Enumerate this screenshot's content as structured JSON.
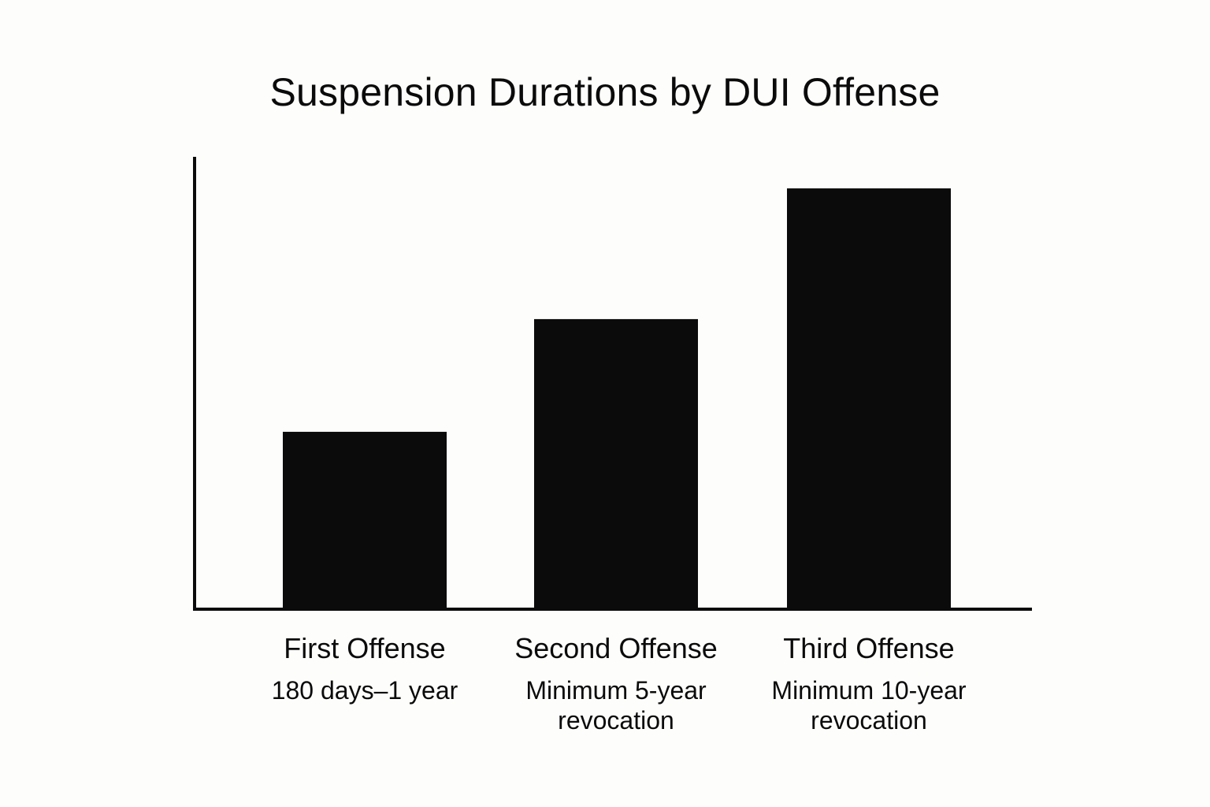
{
  "chart_data": {
    "type": "bar",
    "title": "Suspension Durations by DUI Offense",
    "xlabel": "",
    "ylabel": "",
    "categories": [
      "First Offense",
      "Second Offense",
      "Third Offense"
    ],
    "category_details": [
      [
        "180 days–1 year"
      ],
      [
        "Minimum 5-year",
        "revocation"
      ],
      [
        "Minimum 10-year",
        "revocation"
      ]
    ],
    "values": [
      39,
      64,
      93
    ],
    "ylim": [
      0,
      100
    ],
    "grid": false,
    "legend": "none",
    "colors": {
      "bar": "#0b0b0b",
      "axis": "#0b0b0b",
      "background": "#fdfdfb"
    }
  }
}
